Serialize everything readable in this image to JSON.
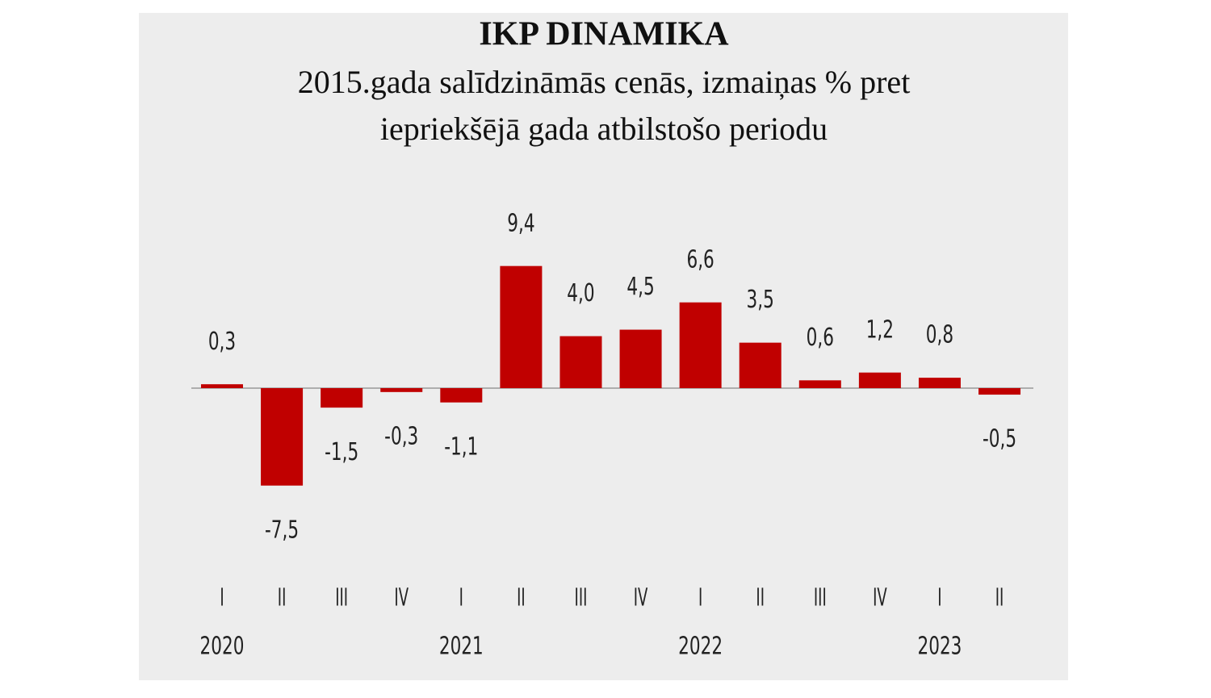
{
  "chart_data": {
    "type": "bar",
    "title": "IKP DINAMIKA",
    "subtitle": [
      "2015.gada salīdzināmās cenās, izmaiņas % pret",
      "iepriekšējā gada atbilstošo periodu"
    ],
    "categories": [
      "I",
      "II",
      "III",
      "IV",
      "I",
      "II",
      "III",
      "IV",
      "I",
      "II",
      "III",
      "IV",
      "I",
      "II"
    ],
    "year_labels": [
      "2020",
      null,
      null,
      null,
      "2021",
      null,
      null,
      null,
      "2022",
      null,
      null,
      null,
      "2023",
      null
    ],
    "values": [
      0.3,
      -7.5,
      -1.5,
      -0.3,
      -1.1,
      9.4,
      4.0,
      4.5,
      6.6,
      3.5,
      0.6,
      1.2,
      0.8,
      -0.5
    ],
    "value_labels": [
      "0,3",
      "-7,5",
      "-1,5",
      "-0,3",
      "-1,1",
      "9,4",
      "4,0",
      "4,5",
      "6,6",
      "3,5",
      "0,6",
      "1,2",
      "0,8",
      "-0,5"
    ],
    "color": "#c00000"
  }
}
